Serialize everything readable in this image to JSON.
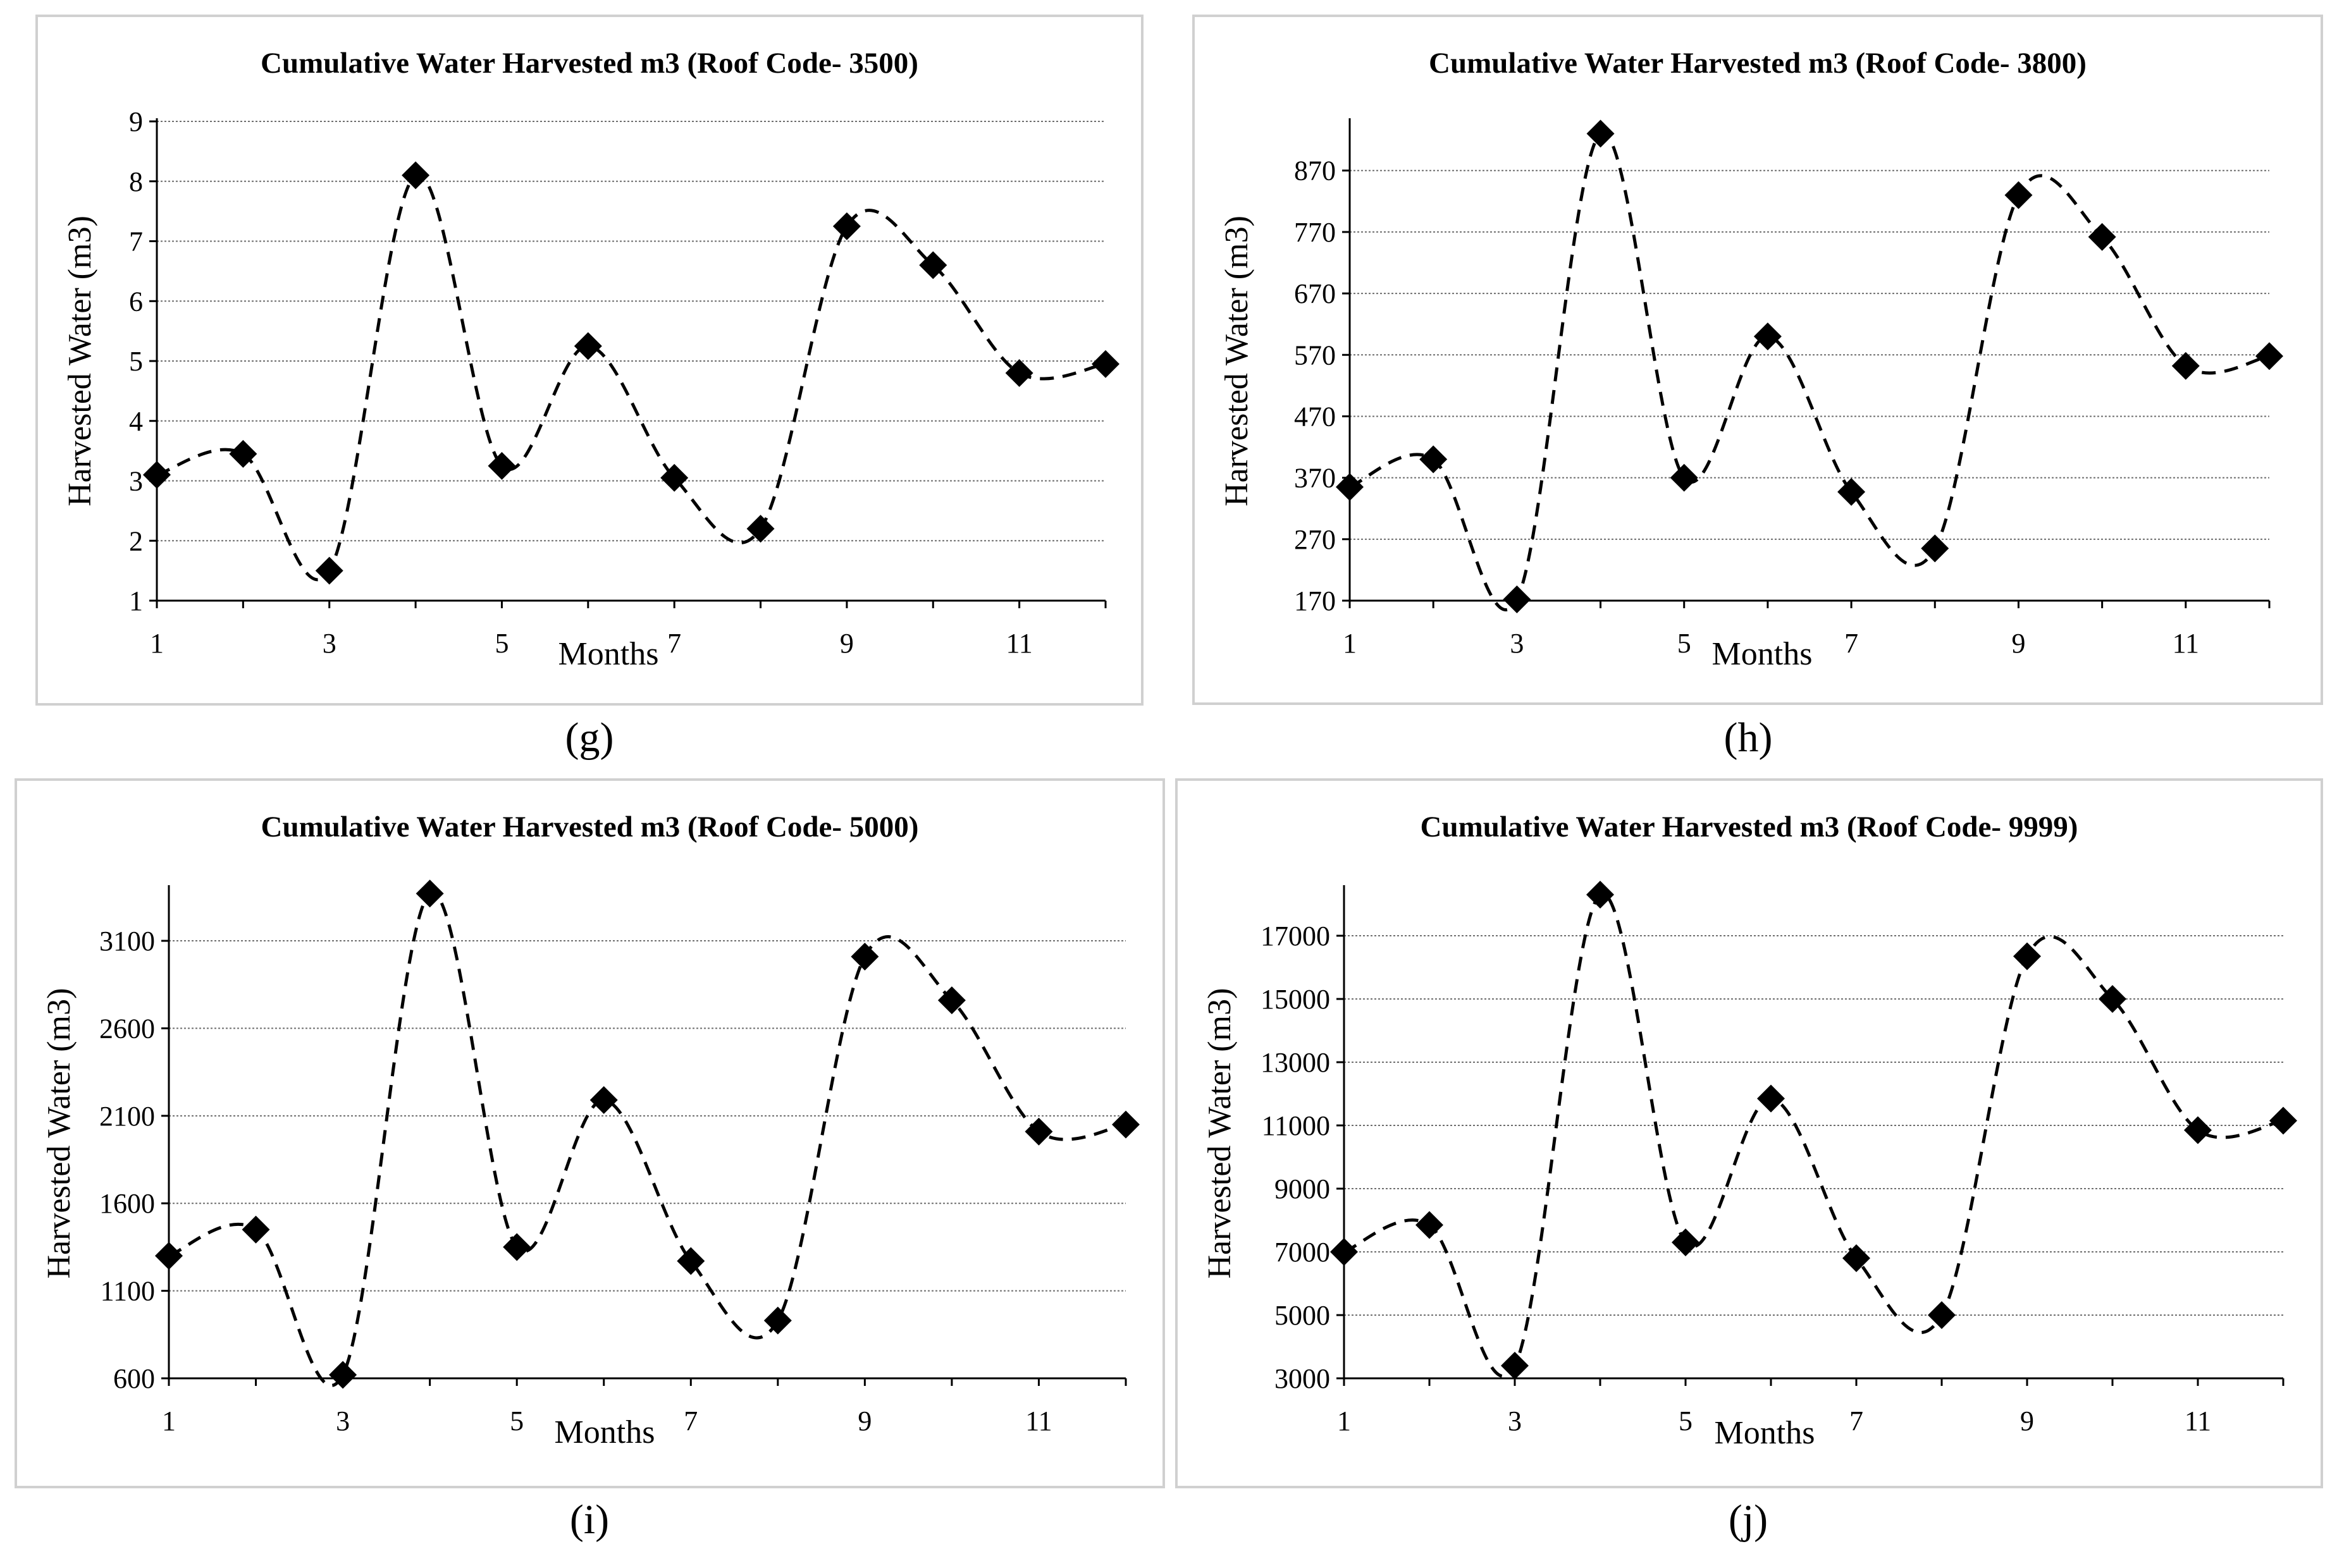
{
  "chart_data": [
    {
      "id": "g",
      "type": "line",
      "caption": "(g)",
      "title": "Cumulative Water Harvested m3 (Roof Code- 3500)",
      "xlabel": "Months",
      "ylabel": "Harvested Water (m3)",
      "x": [
        1,
        2,
        3,
        4,
        5,
        6,
        7,
        8,
        9,
        10,
        11,
        12
      ],
      "values": [
        3.1,
        3.45,
        1.5,
        8.1,
        3.25,
        5.25,
        3.05,
        2.2,
        7.25,
        6.6,
        4.8,
        4.95
      ],
      "xlim": [
        1,
        12
      ],
      "xticks": [
        1,
        3,
        5,
        7,
        9,
        11
      ],
      "ylim": [
        1,
        9
      ],
      "yticks": [
        1,
        2,
        3,
        4,
        5,
        6,
        7,
        8,
        9
      ],
      "grid": true,
      "line_style": "dashed smoothed",
      "marker": "diamond"
    },
    {
      "id": "h",
      "type": "line",
      "caption": "(h)",
      "title": "Cumulative Water Harvested m3 (Roof Code- 3800)",
      "xlabel": "Months",
      "ylabel": "Harvested Water (m3)",
      "x": [
        1,
        2,
        3,
        4,
        5,
        6,
        7,
        8,
        9,
        10,
        11,
        12
      ],
      "values": [
        355,
        400,
        172,
        930,
        370,
        600,
        347,
        255,
        830,
        762,
        552,
        568
      ],
      "xlim": [
        1,
        12
      ],
      "xticks": [
        1,
        3,
        5,
        7,
        9,
        11
      ],
      "ylim": [
        170,
        950
      ],
      "yticks": [
        170,
        270,
        370,
        470,
        570,
        670,
        770,
        870
      ],
      "grid": true,
      "line_style": "dashed smoothed",
      "marker": "diamond"
    },
    {
      "id": "i",
      "type": "line",
      "caption": "(i)",
      "title": "Cumulative Water Harvested m3 (Roof Code- 5000)",
      "xlabel": "Months",
      "ylabel": "Harvested Water (m3)",
      "x": [
        1,
        2,
        3,
        4,
        5,
        6,
        7,
        8,
        9,
        10,
        11,
        12
      ],
      "values": [
        1300,
        1450,
        620,
        3370,
        1350,
        2190,
        1270,
        930,
        3010,
        2760,
        2010,
        2050
      ],
      "xlim": [
        1,
        12
      ],
      "xticks": [
        1,
        3,
        5,
        7,
        9,
        11
      ],
      "ylim": [
        600,
        3400
      ],
      "yticks": [
        600,
        1100,
        1600,
        2100,
        2600,
        3100
      ],
      "grid": true,
      "line_style": "dashed smoothed",
      "marker": "diamond"
    },
    {
      "id": "j",
      "type": "line",
      "caption": "(j)",
      "title": "Cumulative Water Harvested m3 (Roof Code- 9999)",
      "xlabel": "Months",
      "ylabel": "Harvested Water (m3)",
      "x": [
        1,
        2,
        3,
        4,
        5,
        6,
        7,
        8,
        9,
        10,
        11,
        12
      ],
      "values": [
        7000,
        7850,
        3400,
        18300,
        7300,
        11850,
        6800,
        5000,
        16350,
        15000,
        10850,
        11150
      ],
      "xlim": [
        1,
        12
      ],
      "xticks": [
        1,
        3,
        5,
        7,
        9,
        11
      ],
      "ylim": [
        3000,
        18500
      ],
      "yticks": [
        3000,
        5000,
        7000,
        9000,
        11000,
        13000,
        15000,
        17000
      ],
      "grid": true,
      "line_style": "dashed smoothed",
      "marker": "diamond"
    }
  ]
}
